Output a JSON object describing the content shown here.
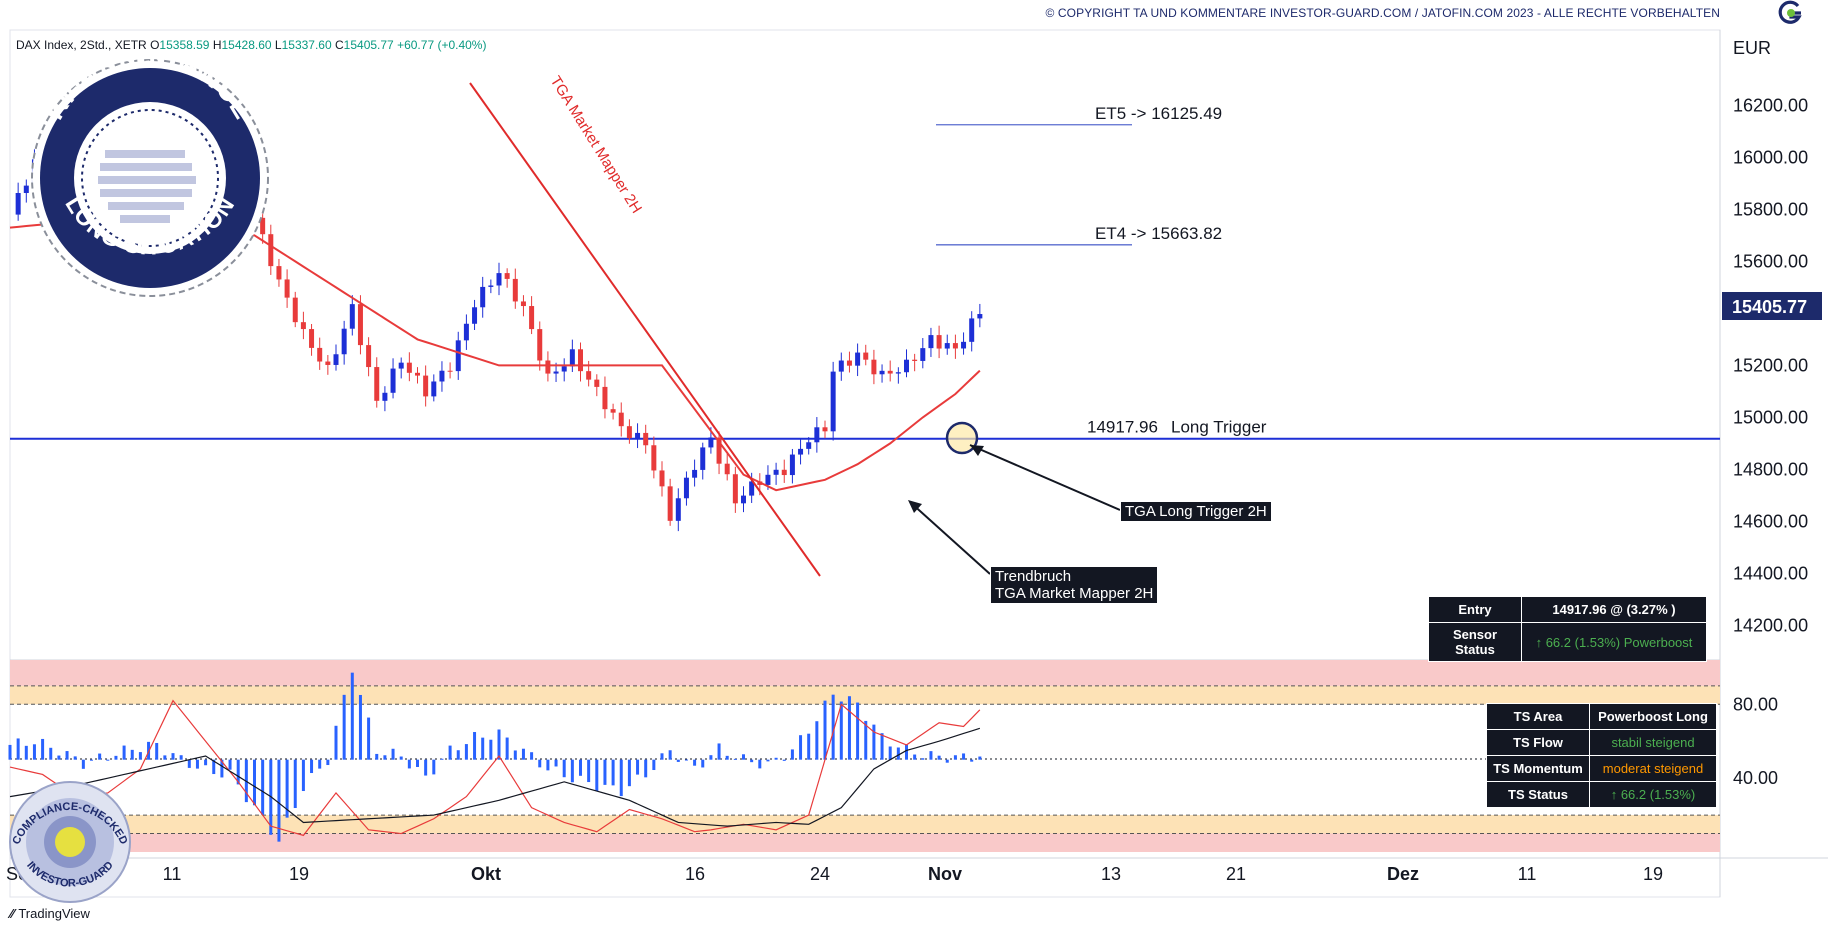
{
  "header": {
    "copyright": "© COPYRIGHT TA UND KOMMENTARE INVESTOR-GUARD.COM / JATOFIN.COM 2023 - ALLE RECHTE VORBEHALTEN"
  },
  "legend": {
    "symbol": "DAX Index, 2Std., XETR",
    "open_label": "O",
    "open": "15358.59",
    "high_label": "H",
    "high": "15428.60",
    "low_label": "L",
    "low": "15337.60",
    "close_label": "C",
    "close": "15405.77",
    "change": "+60.77 (+0.40%)"
  },
  "footer": {
    "brand": "TradingView"
  },
  "badges": {
    "ki_top": "KI-ASSISTANCE",
    "ki_bottom": "LONG SITUATION",
    "compliance_top": "COMPLIANCE-CHECKED",
    "compliance_bottom": "INVESTOR-GUARD"
  },
  "annotations": {
    "market_mapper": "TGA Market Mapper 2H",
    "et5": "ET5 -> 16125.49",
    "et4": "ET4 -> 15663.82",
    "long_trigger_price": "14917.96",
    "long_trigger_text": "Long Trigger",
    "trigger_box": "TGA Long Trigger 2H",
    "trendbruch_line1": "Trendbruch",
    "trendbruch_line2": "TGA Market Mapper 2H"
  },
  "entry_table": {
    "rows": [
      {
        "label": "Entry",
        "value": "14917.96 @ (3.27% )"
      },
      {
        "label": "Sensor Status",
        "value": "↑ 66.2 (1.53%)  Powerboost"
      }
    ]
  },
  "ts_table": {
    "rows": [
      {
        "label": "TS Area",
        "value": "Powerboost Long"
      },
      {
        "label": "TS Flow",
        "value": "stabil steigend"
      },
      {
        "label": "TS Momentum",
        "value": "moderat steigend"
      },
      {
        "label": "TS Status",
        "value": "↑ 66.2 (1.53%)"
      }
    ]
  },
  "colors": {
    "candle_up": "#1d2fd6",
    "candle_down": "#e83b3b",
    "trendline": "#e02b2b",
    "trigger_line": "#1d2fd6",
    "target_line": "#5a6ccf",
    "axis_badge": "#1d2a6b",
    "osc_bar": "#2962ff",
    "zone_red": "#f9c9c9",
    "zone_orange": "#fde2b6"
  },
  "chart_data": [
    {
      "type": "candlestick",
      "title": "",
      "currency": "EUR",
      "y_ticks": [
        16200,
        16000,
        15800,
        15600,
        15400,
        15200,
        15000,
        14800,
        14600,
        14400,
        14200
      ],
      "y_tick_labels": [
        "16200.00",
        "16000.00",
        "15800.00",
        "15600.00",
        "15400.00",
        "15200.00",
        "15000.00",
        "14800.00",
        "14600.00",
        "14400.00",
        "14200.00"
      ],
      "ylim": [
        14140,
        16290
      ],
      "x_tick_labels": [
        "Sep",
        "11",
        "19",
        "Okt",
        "16",
        "24",
        "Nov",
        "13",
        "21",
        "Dez",
        "11",
        "19"
      ],
      "current_price": 15405.77,
      "current_price_label": "15405.77",
      "close_path": [
        [
          0,
          15780
        ],
        [
          3,
          15980
        ],
        [
          6,
          15850
        ],
        [
          9,
          15680
        ],
        [
          12,
          15860
        ],
        [
          15,
          15760
        ],
        [
          18,
          15660
        ],
        [
          21,
          15960
        ],
        [
          24,
          15800
        ],
        [
          27,
          15710
        ],
        [
          30,
          15770
        ],
        [
          33,
          15520
        ],
        [
          36,
          15320
        ],
        [
          39,
          15180
        ],
        [
          42,
          15420
        ],
        [
          45,
          15060
        ],
        [
          48,
          15220
        ],
        [
          51,
          15100
        ],
        [
          54,
          15200
        ],
        [
          57,
          15440
        ],
        [
          60,
          15560
        ],
        [
          63,
          15420
        ],
        [
          66,
          15150
        ],
        [
          69,
          15240
        ],
        [
          72,
          15100
        ],
        [
          75,
          14960
        ],
        [
          78,
          14900
        ],
        [
          81,
          14620
        ],
        [
          84,
          14820
        ],
        [
          86,
          14920
        ],
        [
          89,
          14680
        ],
        [
          92,
          14760
        ],
        [
          95,
          14800
        ],
        [
          98,
          14920
        ],
        [
          100,
          14960
        ],
        [
          101,
          15180
        ],
        [
          104,
          15240
        ],
        [
          107,
          15160
        ],
        [
          110,
          15200
        ],
        [
          113,
          15300
        ],
        [
          116,
          15260
        ],
        [
          118,
          15360
        ],
        [
          119,
          15405.77
        ]
      ],
      "sma": [
        [
          0,
          15730
        ],
        [
          10,
          15760
        ],
        [
          20,
          15800
        ],
        [
          30,
          15700
        ],
        [
          40,
          15500
        ],
        [
          50,
          15300
        ],
        [
          60,
          15200
        ],
        [
          70,
          15200
        ],
        [
          80,
          15200
        ],
        [
          90,
          14780
        ],
        [
          94,
          14720
        ],
        [
          100,
          14760
        ],
        [
          104,
          14820
        ],
        [
          108,
          14900
        ],
        [
          112,
          15000
        ],
        [
          116,
          15090
        ],
        [
          119,
          15180
        ]
      ],
      "trendline_market_mapper": [
        [
          14917.96,
          15450
        ],
        [
          14917.96,
          14430
        ]
      ],
      "trendline_points": [
        [
          57,
          15650
        ],
        [
          100,
          14390
        ]
      ],
      "long_trigger": 14917.96,
      "targets": [
        {
          "name": "ET5",
          "value": 16125.49
        },
        {
          "name": "ET4",
          "value": 15663.82
        }
      ],
      "trigger_candle_index": 99
    },
    {
      "type": "oscillator",
      "title": "",
      "y_tick_labels": [
        "80.00",
        "40.00"
      ],
      "y_ticks": [
        80,
        40
      ],
      "zones": [
        {
          "from": 90,
          "to": 104,
          "color": "red"
        },
        {
          "from": 80,
          "to": 90,
          "color": "orange"
        },
        {
          "from": 10,
          "to": 20,
          "color": "orange"
        },
        {
          "from": 0,
          "to": 10,
          "color": "red"
        }
      ],
      "midline": 50,
      "histogram": [
        [
          0,
          58
        ],
        [
          3,
          60
        ],
        [
          6,
          55
        ],
        [
          9,
          48
        ],
        [
          12,
          52
        ],
        [
          15,
          56
        ],
        [
          18,
          58
        ],
        [
          21,
          50
        ],
        [
          24,
          44
        ],
        [
          27,
          42
        ],
        [
          30,
          24
        ],
        [
          33,
          6
        ],
        [
          36,
          35
        ],
        [
          39,
          50
        ],
        [
          42,
          100
        ],
        [
          45,
          55
        ],
        [
          48,
          52
        ],
        [
          51,
          40
        ],
        [
          54,
          55
        ],
        [
          57,
          62
        ],
        [
          60,
          64
        ],
        [
          63,
          55
        ],
        [
          66,
          45
        ],
        [
          69,
          40
        ],
        [
          72,
          36
        ],
        [
          75,
          33
        ],
        [
          78,
          42
        ],
        [
          81,
          55
        ],
        [
          84,
          45
        ],
        [
          87,
          56
        ],
        [
          90,
          50
        ],
        [
          93,
          47
        ],
        [
          96,
          55
        ],
        [
          99,
          72
        ],
        [
          101,
          86
        ],
        [
          104,
          80
        ],
        [
          107,
          62
        ],
        [
          110,
          55
        ],
        [
          113,
          52
        ],
        [
          116,
          51
        ],
        [
          119,
          52
        ]
      ],
      "fast_line": [
        [
          0,
          46
        ],
        [
          4,
          42
        ],
        [
          8,
          30
        ],
        [
          12,
          32
        ],
        [
          16,
          45
        ],
        [
          20,
          82
        ],
        [
          24,
          60
        ],
        [
          28,
          38
        ],
        [
          32,
          14
        ],
        [
          36,
          9
        ],
        [
          40,
          32
        ],
        [
          44,
          12
        ],
        [
          48,
          10
        ],
        [
          52,
          18
        ],
        [
          56,
          30
        ],
        [
          60,
          52
        ],
        [
          64,
          24
        ],
        [
          68,
          16
        ],
        [
          72,
          11
        ],
        [
          76,
          23
        ],
        [
          80,
          18
        ],
        [
          84,
          11
        ],
        [
          86,
          12
        ],
        [
          90,
          15
        ],
        [
          94,
          12
        ],
        [
          98,
          20
        ],
        [
          102,
          80
        ],
        [
          106,
          65
        ],
        [
          110,
          58
        ],
        [
          114,
          70
        ],
        [
          117,
          68
        ],
        [
          119,
          77
        ]
      ],
      "slow_line": [
        [
          0,
          30
        ],
        [
          8,
          36
        ],
        [
          16,
          44
        ],
        [
          24,
          52
        ],
        [
          32,
          30
        ],
        [
          36,
          16
        ],
        [
          44,
          18
        ],
        [
          52,
          20
        ],
        [
          60,
          28
        ],
        [
          68,
          38
        ],
        [
          76,
          28
        ],
        [
          82,
          16
        ],
        [
          88,
          14
        ],
        [
          94,
          16
        ],
        [
          98,
          15
        ],
        [
          102,
          24
        ],
        [
          106,
          45
        ],
        [
          110,
          55
        ],
        [
          114,
          60
        ],
        [
          119,
          67
        ]
      ]
    }
  ]
}
